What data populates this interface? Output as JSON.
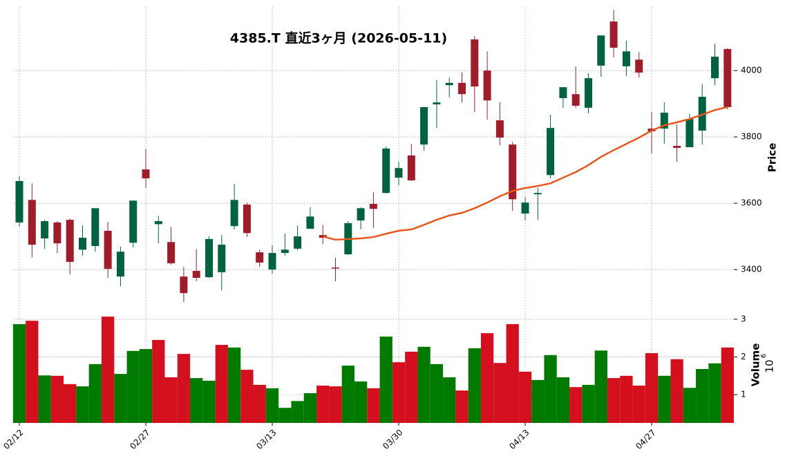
{
  "chart_data": {
    "type": "candlestick",
    "title": "4385.T 直近3ヶ月 (2026-05-11)",
    "categories": [
      "02/12",
      null,
      null,
      null,
      null,
      null,
      null,
      null,
      null,
      null,
      "02/27",
      null,
      null,
      null,
      null,
      null,
      null,
      null,
      null,
      null,
      "03/13",
      null,
      null,
      null,
      null,
      null,
      null,
      null,
      null,
      null,
      "03/30",
      null,
      null,
      null,
      null,
      null,
      null,
      null,
      null,
      null,
      "04/13",
      null,
      null,
      null,
      null,
      null,
      null,
      null,
      null,
      null,
      "04/27",
      null,
      null,
      null,
      null,
      null,
      null
    ],
    "open": [
      3542,
      3610,
      3494,
      3542,
      3550,
      3460,
      3471,
      3517,
      3379,
      3481,
      3702,
      3537,
      3483,
      3379,
      3396,
      3377,
      3392,
      3531,
      3596,
      3452,
      3400,
      3450,
      3463,
      3523,
      3504,
      3406,
      3446,
      3548,
      3598,
      3631,
      3677,
      3744,
      3777,
      3898,
      3956,
      3963,
      4094,
      4000,
      3850,
      3777,
      3569,
      3627,
      3685,
      3917,
      3929,
      3888,
      4015,
      4148,
      4013,
      4033,
      3825,
      3825,
      3773,
      3769,
      3819,
      3977,
      4065
    ],
    "high": [
      3681,
      3660,
      3550,
      3546,
      3554,
      3533,
      3585,
      3544,
      3469,
      3608,
      3763,
      3562,
      3529,
      3408,
      3462,
      3500,
      3504,
      3658,
      3602,
      3460,
      3473,
      3508,
      3533,
      3588,
      3535,
      3435,
      3546,
      3588,
      3633,
      3771,
      3725,
      3779,
      3890,
      3971,
      3979,
      3994,
      4104,
      4058,
      3904,
      3785,
      3619,
      3646,
      3867,
      3950,
      4013,
      3992,
      4106,
      4183,
      4090,
      4056,
      3875,
      3904,
      3838,
      3869,
      3960,
      4081,
      4067
    ],
    "low": [
      3529,
      3437,
      3462,
      3450,
      3385,
      3442,
      3454,
      3375,
      3350,
      3467,
      3646,
      3479,
      3415,
      3302,
      3365,
      3375,
      3337,
      3521,
      3498,
      3408,
      3388,
      3442,
      3458,
      3523,
      3477,
      3365,
      3444,
      3521,
      3525,
      3629,
      3654,
      3667,
      3758,
      3827,
      3919,
      3904,
      3875,
      3852,
      3775,
      3577,
      3548,
      3550,
      3675,
      3888,
      3888,
      3871,
      3981,
      4040,
      3983,
      3979,
      3750,
      3779,
      3725,
      3769,
      3777,
      3956,
      3883
    ],
    "close": [
      3667,
      3475,
      3546,
      3479,
      3423,
      3496,
      3585,
      3402,
      3454,
      3608,
      3675,
      3546,
      3419,
      3329,
      3375,
      3492,
      3475,
      3610,
      3510,
      3421,
      3450,
      3460,
      3500,
      3560,
      3496,
      3404,
      3540,
      3585,
      3583,
      3765,
      3706,
      3669,
      3890,
      3904,
      3963,
      3929,
      3952,
      3910,
      3798,
      3612,
      3602,
      3631,
      3827,
      3950,
      3894,
      3977,
      4106,
      4069,
      4058,
      3994,
      3817,
      3873,
      3767,
      3854,
      3921,
      4042,
      3890
    ],
    "up_color": "#006340",
    "down_color": "#a01c2a",
    "ylim": [
      3296,
      4192
    ],
    "yticks": [
      3400,
      3600,
      3800,
      4000
    ],
    "ylabel": "Price",
    "grid": true,
    "ma": {
      "color": "#e8561a",
      "values": [
        null,
        null,
        null,
        null,
        null,
        null,
        null,
        null,
        null,
        null,
        null,
        null,
        null,
        null,
        null,
        null,
        null,
        null,
        null,
        null,
        null,
        null,
        null,
        null,
        3500,
        3490,
        3492,
        3494,
        3498,
        3508,
        3517,
        3521,
        3535,
        3550,
        3563,
        3571,
        3585,
        3602,
        3621,
        3637,
        3646,
        3652,
        3660,
        3677,
        3694,
        3715,
        3740,
        3760,
        3779,
        3798,
        3819,
        3835,
        3844,
        3854,
        3867,
        3881,
        3890
      ]
    },
    "volume": {
      "ylabel": "Volume",
      "scale_base": "10",
      "scale_exponent": "6",
      "ylim": [
        0.25,
        3.3
      ],
      "yticks": [
        1,
        2,
        3
      ],
      "values": [
        2.87,
        2.96,
        1.51,
        1.5,
        1.28,
        1.22,
        1.81,
        3.07,
        1.55,
        2.16,
        2.21,
        2.45,
        1.46,
        2.08,
        1.44,
        1.37,
        2.32,
        2.25,
        1.66,
        1.26,
        1.17,
        0.65,
        0.83,
        1.04,
        1.24,
        1.22,
        1.77,
        1.35,
        1.17,
        2.54,
        1.86,
        2.14,
        2.27,
        1.81,
        1.46,
        1.11,
        2.23,
        2.63,
        1.84,
        2.87,
        1.61,
        1.39,
        2.05,
        1.46,
        1.2,
        1.26,
        2.17,
        1.44,
        1.5,
        1.24,
        2.1,
        1.5,
        1.94,
        1.18,
        1.68,
        1.83,
        2.25
      ],
      "colors": [
        "#007a00",
        "#d4101e",
        "#007a00",
        "#d4101e",
        "#d4101e",
        "#007a00",
        "#007a00",
        "#d4101e",
        "#007a00",
        "#007a00",
        "#007a00",
        "#d4101e",
        "#d4101e",
        "#d4101e",
        "#007a00",
        "#007a00",
        "#d4101e",
        "#007a00",
        "#d4101e",
        "#d4101e",
        "#007a00",
        "#007a00",
        "#007a00",
        "#007a00",
        "#d4101e",
        "#d4101e",
        "#007a00",
        "#007a00",
        "#d4101e",
        "#007a00",
        "#d4101e",
        "#d4101e",
        "#007a00",
        "#007a00",
        "#007a00",
        "#d4101e",
        "#007a00",
        "#d4101e",
        "#d4101e",
        "#d4101e",
        "#d4101e",
        "#007a00",
        "#007a00",
        "#007a00",
        "#d4101e",
        "#007a00",
        "#007a00",
        "#d4101e",
        "#d4101e",
        "#d4101e",
        "#d4101e",
        "#007a00",
        "#d4101e",
        "#007a00",
        "#007a00",
        "#007a00",
        "#d4101e"
      ]
    }
  }
}
